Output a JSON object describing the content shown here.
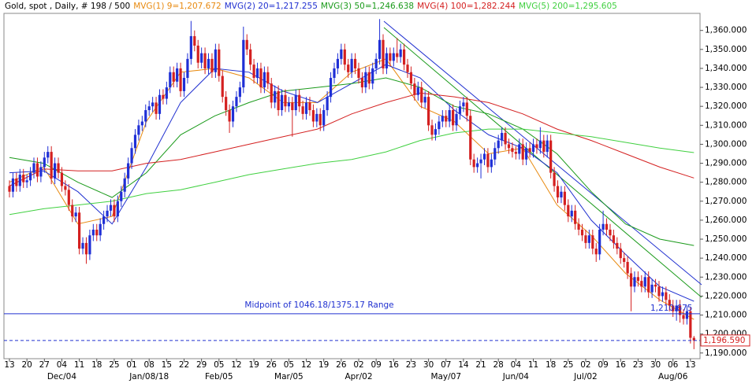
{
  "chart_data": {
    "type": "candlestick",
    "title": "Gold, spot , Daily, # 198 / 500",
    "up_color": "#1f2fd6",
    "down_color": "#d42020",
    "ylim": [
      1187,
      1369
    ],
    "yticks": [
      {
        "value": 1190,
        "label": "1,190.000"
      },
      {
        "value": 1200,
        "label": "1,200.000"
      },
      {
        "value": 1210,
        "label": "1,210.000"
      },
      {
        "value": 1220,
        "label": "1,220.000"
      },
      {
        "value": 1230,
        "label": "1,230.000"
      },
      {
        "value": 1240,
        "label": "1,240.000"
      },
      {
        "value": 1250,
        "label": "1,250.000"
      },
      {
        "value": 1260,
        "label": "1,260.000"
      },
      {
        "value": 1270,
        "label": "1,270.000"
      },
      {
        "value": 1280,
        "label": "1,280.000"
      },
      {
        "value": 1290,
        "label": "1,290.000"
      },
      {
        "value": 1300,
        "label": "1,300.000"
      },
      {
        "value": 1310,
        "label": "1,310.000"
      },
      {
        "value": 1320,
        "label": "1,320.000"
      },
      {
        "value": 1330,
        "label": "1,330.000"
      },
      {
        "value": 1340,
        "label": "1,340.000"
      },
      {
        "value": 1350,
        "label": "1,350.000"
      },
      {
        "value": 1360,
        "label": "1,360.000"
      }
    ],
    "week_labels": [
      "13",
      "20",
      "27",
      "04",
      "11",
      "18",
      "25",
      "01",
      "08",
      "15",
      "22",
      "29",
      "05",
      "12",
      "19",
      "26",
      "05",
      "12",
      "19",
      "26",
      "02",
      "09",
      "16",
      "23",
      "30",
      "07",
      "14",
      "21",
      "28",
      "04",
      "11",
      "18",
      "25",
      "02",
      "09",
      "16",
      "23",
      "30",
      "06",
      "13"
    ],
    "month_labels": [
      "Dec/04",
      "Jan/08/18",
      "Feb/05",
      "Mar/05",
      "Apr/02",
      "May/07",
      "Jun/04",
      "Jul/02",
      "Aug/06"
    ],
    "candles": [
      [
        1278,
        1281,
        1272,
        1275
      ],
      [
        1275,
        1285,
        1272,
        1282
      ],
      [
        1282,
        1285,
        1275,
        1278
      ],
      [
        1278,
        1287,
        1275,
        1284
      ],
      [
        1284,
        1287,
        1277,
        1280
      ],
      [
        1280,
        1284,
        1277,
        1281
      ],
      [
        1281,
        1288,
        1278,
        1285
      ],
      [
        1285,
        1293,
        1282,
        1290
      ],
      [
        1290,
        1293,
        1280,
        1283
      ],
      [
        1283,
        1291,
        1280,
        1288
      ],
      [
        1288,
        1296,
        1285,
        1293
      ],
      [
        1293,
        1299,
        1290,
        1296
      ],
      [
        1296,
        1299,
        1279,
        1282
      ],
      [
        1282,
        1293,
        1279,
        1290
      ],
      [
        1290,
        1293,
        1282,
        1285
      ],
      [
        1285,
        1288,
        1275,
        1278
      ],
      [
        1278,
        1281,
        1273,
        1276
      ],
      [
        1276,
        1279,
        1265,
        1268
      ],
      [
        1268,
        1271,
        1259,
        1262
      ],
      [
        1262,
        1267,
        1259,
        1264
      ],
      [
        1264,
        1267,
        1242,
        1245
      ],
      [
        1245,
        1251,
        1242,
        1248
      ],
      [
        1248,
        1251,
        1237,
        1242
      ],
      [
        1242,
        1255,
        1239,
        1252
      ],
      [
        1252,
        1258,
        1249,
        1255
      ],
      [
        1255,
        1258,
        1249,
        1252
      ],
      [
        1252,
        1261,
        1249,
        1258
      ],
      [
        1258,
        1265,
        1255,
        1262
      ],
      [
        1262,
        1268,
        1259,
        1265
      ],
      [
        1265,
        1271,
        1262,
        1268
      ],
      [
        1268,
        1271,
        1259,
        1262
      ],
      [
        1262,
        1273,
        1259,
        1270
      ],
      [
        1270,
        1278,
        1267,
        1275
      ],
      [
        1275,
        1285,
        1272,
        1282
      ],
      [
        1282,
        1293,
        1279,
        1290
      ],
      [
        1290,
        1301,
        1287,
        1298
      ],
      [
        1298,
        1308,
        1295,
        1305
      ],
      [
        1305,
        1313,
        1302,
        1310
      ],
      [
        1310,
        1315,
        1307,
        1312
      ],
      [
        1312,
        1321,
        1309,
        1318
      ],
      [
        1318,
        1323,
        1315,
        1320
      ],
      [
        1320,
        1325,
        1317,
        1322
      ],
      [
        1322,
        1325,
        1313,
        1316
      ],
      [
        1316,
        1329,
        1313,
        1326
      ],
      [
        1326,
        1329,
        1321,
        1324
      ],
      [
        1324,
        1333,
        1321,
        1330
      ],
      [
        1330,
        1341,
        1327,
        1338
      ],
      [
        1338,
        1341,
        1330,
        1333
      ],
      [
        1333,
        1343,
        1330,
        1340
      ],
      [
        1340,
        1343,
        1325,
        1328
      ],
      [
        1328,
        1338,
        1325,
        1335
      ],
      [
        1335,
        1348,
        1332,
        1345
      ],
      [
        1345,
        1365,
        1342,
        1357
      ],
      [
        1357,
        1360,
        1349,
        1352
      ],
      [
        1352,
        1355,
        1340,
        1343
      ],
      [
        1343,
        1351,
        1340,
        1348
      ],
      [
        1348,
        1351,
        1337,
        1340
      ],
      [
        1340,
        1348,
        1337,
        1345
      ],
      [
        1345,
        1348,
        1335,
        1338
      ],
      [
        1338,
        1353,
        1335,
        1350
      ],
      [
        1350,
        1353,
        1333,
        1336
      ],
      [
        1336,
        1339,
        1322,
        1325
      ],
      [
        1325,
        1328,
        1315,
        1318
      ],
      [
        1318,
        1321,
        1306,
        1312
      ],
      [
        1312,
        1323,
        1309,
        1320
      ],
      [
        1320,
        1328,
        1317,
        1325
      ],
      [
        1325,
        1333,
        1322,
        1330
      ],
      [
        1330,
        1362,
        1327,
        1355
      ],
      [
        1355,
        1358,
        1347,
        1350
      ],
      [
        1350,
        1353,
        1339,
        1342
      ],
      [
        1342,
        1345,
        1332,
        1335
      ],
      [
        1335,
        1343,
        1332,
        1340
      ],
      [
        1340,
        1343,
        1327,
        1330
      ],
      [
        1330,
        1341,
        1327,
        1338
      ],
      [
        1338,
        1341,
        1329,
        1332
      ],
      [
        1332,
        1335,
        1319,
        1322
      ],
      [
        1322,
        1331,
        1319,
        1328
      ],
      [
        1328,
        1331,
        1315,
        1318
      ],
      [
        1318,
        1329,
        1315,
        1326
      ],
      [
        1326,
        1329,
        1317,
        1320
      ],
      [
        1320,
        1325,
        1317,
        1322
      ],
      [
        1322,
        1325,
        1304,
        1318
      ],
      [
        1318,
        1329,
        1315,
        1326
      ],
      [
        1326,
        1329,
        1317,
        1320
      ],
      [
        1320,
        1323,
        1313,
        1316
      ],
      [
        1316,
        1325,
        1313,
        1322
      ],
      [
        1322,
        1325,
        1315,
        1318
      ],
      [
        1318,
        1321,
        1309,
        1312
      ],
      [
        1312,
        1319,
        1309,
        1316
      ],
      [
        1316,
        1319,
        1307,
        1310
      ],
      [
        1310,
        1321,
        1307,
        1318
      ],
      [
        1318,
        1328,
        1315,
        1325
      ],
      [
        1325,
        1338,
        1322,
        1335
      ],
      [
        1335,
        1343,
        1332,
        1340
      ],
      [
        1340,
        1348,
        1337,
        1345
      ],
      [
        1345,
        1353,
        1342,
        1350
      ],
      [
        1350,
        1353,
        1339,
        1342
      ],
      [
        1342,
        1345,
        1335,
        1338
      ],
      [
        1338,
        1348,
        1335,
        1345
      ],
      [
        1345,
        1348,
        1337,
        1340
      ],
      [
        1340,
        1343,
        1332,
        1335
      ],
      [
        1335,
        1338,
        1327,
        1330
      ],
      [
        1330,
        1341,
        1327,
        1338
      ],
      [
        1338,
        1341,
        1329,
        1332
      ],
      [
        1332,
        1343,
        1329,
        1340
      ],
      [
        1340,
        1348,
        1337,
        1345
      ],
      [
        1345,
        1366,
        1342,
        1355
      ],
      [
        1355,
        1358,
        1337,
        1340
      ],
      [
        1340,
        1351,
        1337,
        1348
      ],
      [
        1348,
        1351,
        1341,
        1344
      ],
      [
        1344,
        1351,
        1341,
        1348
      ],
      [
        1348,
        1356,
        1343,
        1346
      ],
      [
        1346,
        1353,
        1343,
        1350
      ],
      [
        1350,
        1353,
        1339,
        1342
      ],
      [
        1342,
        1345,
        1335,
        1338
      ],
      [
        1338,
        1341,
        1329,
        1332
      ],
      [
        1332,
        1335,
        1323,
        1326
      ],
      [
        1326,
        1333,
        1323,
        1330
      ],
      [
        1330,
        1333,
        1319,
        1322
      ],
      [
        1322,
        1328,
        1319,
        1325
      ],
      [
        1325,
        1328,
        1307,
        1310
      ],
      [
        1310,
        1313,
        1302,
        1305
      ],
      [
        1305,
        1311,
        1302,
        1308
      ],
      [
        1308,
        1315,
        1305,
        1312
      ],
      [
        1312,
        1318,
        1309,
        1315
      ],
      [
        1315,
        1318,
        1309,
        1312
      ],
      [
        1312,
        1321,
        1309,
        1318
      ],
      [
        1318,
        1321,
        1307,
        1310
      ],
      [
        1310,
        1319,
        1307,
        1316
      ],
      [
        1316,
        1323,
        1313,
        1320
      ],
      [
        1320,
        1325,
        1317,
        1322
      ],
      [
        1322,
        1325,
        1312,
        1315
      ],
      [
        1315,
        1318,
        1289,
        1292
      ],
      [
        1292,
        1295,
        1285,
        1288
      ],
      [
        1288,
        1293,
        1285,
        1290
      ],
      [
        1290,
        1295,
        1282,
        1292
      ],
      [
        1292,
        1298,
        1289,
        1295
      ],
      [
        1295,
        1298,
        1285,
        1288
      ],
      [
        1288,
        1295,
        1285,
        1292
      ],
      [
        1292,
        1301,
        1289,
        1298
      ],
      [
        1298,
        1305,
        1295,
        1302
      ],
      [
        1302,
        1309,
        1299,
        1306
      ],
      [
        1306,
        1309,
        1297,
        1300
      ],
      [
        1300,
        1303,
        1295,
        1298
      ],
      [
        1298,
        1301,
        1293,
        1296
      ],
      [
        1296,
        1299,
        1292,
        1295
      ],
      [
        1295,
        1303,
        1292,
        1300
      ],
      [
        1300,
        1303,
        1289,
        1292
      ],
      [
        1292,
        1301,
        1289,
        1298
      ],
      [
        1298,
        1301,
        1293,
        1296
      ],
      [
        1296,
        1303,
        1293,
        1300
      ],
      [
        1300,
        1303,
        1295,
        1298
      ],
      [
        1298,
        1309,
        1295,
        1302
      ],
      [
        1302,
        1305,
        1293,
        1296
      ],
      [
        1296,
        1305,
        1293,
        1302
      ],
      [
        1302,
        1305,
        1282,
        1285
      ],
      [
        1285,
        1288,
        1275,
        1278
      ],
      [
        1278,
        1281,
        1269,
        1272
      ],
      [
        1272,
        1278,
        1269,
        1275
      ],
      [
        1275,
        1278,
        1265,
        1268
      ],
      [
        1268,
        1271,
        1259,
        1262
      ],
      [
        1262,
        1268,
        1259,
        1265
      ],
      [
        1265,
        1268,
        1255,
        1258
      ],
      [
        1258,
        1261,
        1252,
        1255
      ],
      [
        1255,
        1258,
        1249,
        1252
      ],
      [
        1252,
        1255,
        1245,
        1248
      ],
      [
        1248,
        1255,
        1245,
        1252
      ],
      [
        1252,
        1255,
        1242,
        1245
      ],
      [
        1245,
        1248,
        1238,
        1242
      ],
      [
        1242,
        1258,
        1239,
        1255
      ],
      [
        1255,
        1265,
        1252,
        1258
      ],
      [
        1258,
        1261,
        1252,
        1255
      ],
      [
        1255,
        1258,
        1249,
        1252
      ],
      [
        1252,
        1255,
        1245,
        1248
      ],
      [
        1248,
        1251,
        1242,
        1245
      ],
      [
        1245,
        1248,
        1237,
        1240
      ],
      [
        1240,
        1243,
        1235,
        1238
      ],
      [
        1238,
        1241,
        1229,
        1232
      ],
      [
        1232,
        1235,
        1212,
        1225
      ],
      [
        1225,
        1233,
        1222,
        1230
      ],
      [
        1230,
        1233,
        1225,
        1228
      ],
      [
        1228,
        1231,
        1222,
        1225
      ],
      [
        1225,
        1233,
        1222,
        1230
      ],
      [
        1230,
        1233,
        1219,
        1222
      ],
      [
        1222,
        1229,
        1219,
        1226
      ],
      [
        1226,
        1229,
        1222,
        1225
      ],
      [
        1225,
        1228,
        1217,
        1220
      ],
      [
        1220,
        1225,
        1217,
        1222
      ],
      [
        1222,
        1225,
        1215,
        1218
      ],
      [
        1218,
        1221,
        1212,
        1215
      ],
      [
        1215,
        1218,
        1209,
        1212
      ],
      [
        1212,
        1218,
        1207,
        1215
      ],
      [
        1215,
        1218,
        1206,
        1210
      ],
      [
        1210,
        1213,
        1205,
        1208
      ],
      [
        1208,
        1215,
        1205,
        1212
      ],
      [
        1212,
        1214,
        1195,
        1198
      ],
      [
        1198,
        1199,
        1192,
        1196.59
      ]
    ],
    "series": [
      {
        "name": "MVG(1) 9=1,207.672",
        "color": "#e88a10",
        "values": [
          1280,
          1288,
          1258,
          1262,
          1312,
          1338,
          1340,
          1335,
          1322,
          1322,
          1338,
          1345,
          1320,
          1312,
          1295,
          1298,
          1268,
          1252,
          1232,
          1218,
          1207.672
        ]
      },
      {
        "name": "MVG(2) 20=1,217.255",
        "color": "#2030d0",
        "values": [
          1285,
          1286,
          1275,
          1258,
          1288,
          1322,
          1340,
          1338,
          1328,
          1322,
          1332,
          1342,
          1335,
          1318,
          1305,
          1298,
          1285,
          1260,
          1242,
          1225,
          1217.255
        ]
      },
      {
        "name": "MVG(3) 50=1,246.638",
        "color": "#1a9a1a",
        "values": [
          1293,
          1290,
          1280,
          1272,
          1285,
          1305,
          1315,
          1322,
          1328,
          1330,
          1332,
          1335,
          1330,
          1320,
          1316,
          1308,
          1295,
          1275,
          1258,
          1250,
          1246.638
        ]
      },
      {
        "name": "MVG(4) 100=1,282.244",
        "color": "#d42020",
        "values": [
          1278,
          1287,
          1286,
          1286,
          1290,
          1292,
          1296,
          1300,
          1304,
          1308,
          1316,
          1322,
          1327,
          1325,
          1322,
          1316,
          1308,
          1302,
          1295,
          1288,
          1282.244
        ]
      },
      {
        "name": "MVG(5) 200=1,295.605",
        "color": "#40d040",
        "values": [
          1263,
          1266,
          1268,
          1270,
          1274,
          1276,
          1280,
          1284,
          1287,
          1290,
          1292,
          1296,
          1302,
          1306,
          1308,
          1308,
          1306,
          1304,
          1301,
          1298,
          1295.605
        ]
      }
    ],
    "midpoint": {
      "text": "Midpoint of 1046.18/1375.17 Range",
      "value": 1210.675,
      "value_label": "1,210.675"
    },
    "last_price": {
      "value": 1196.59,
      "value_label": "1,196.590"
    }
  }
}
